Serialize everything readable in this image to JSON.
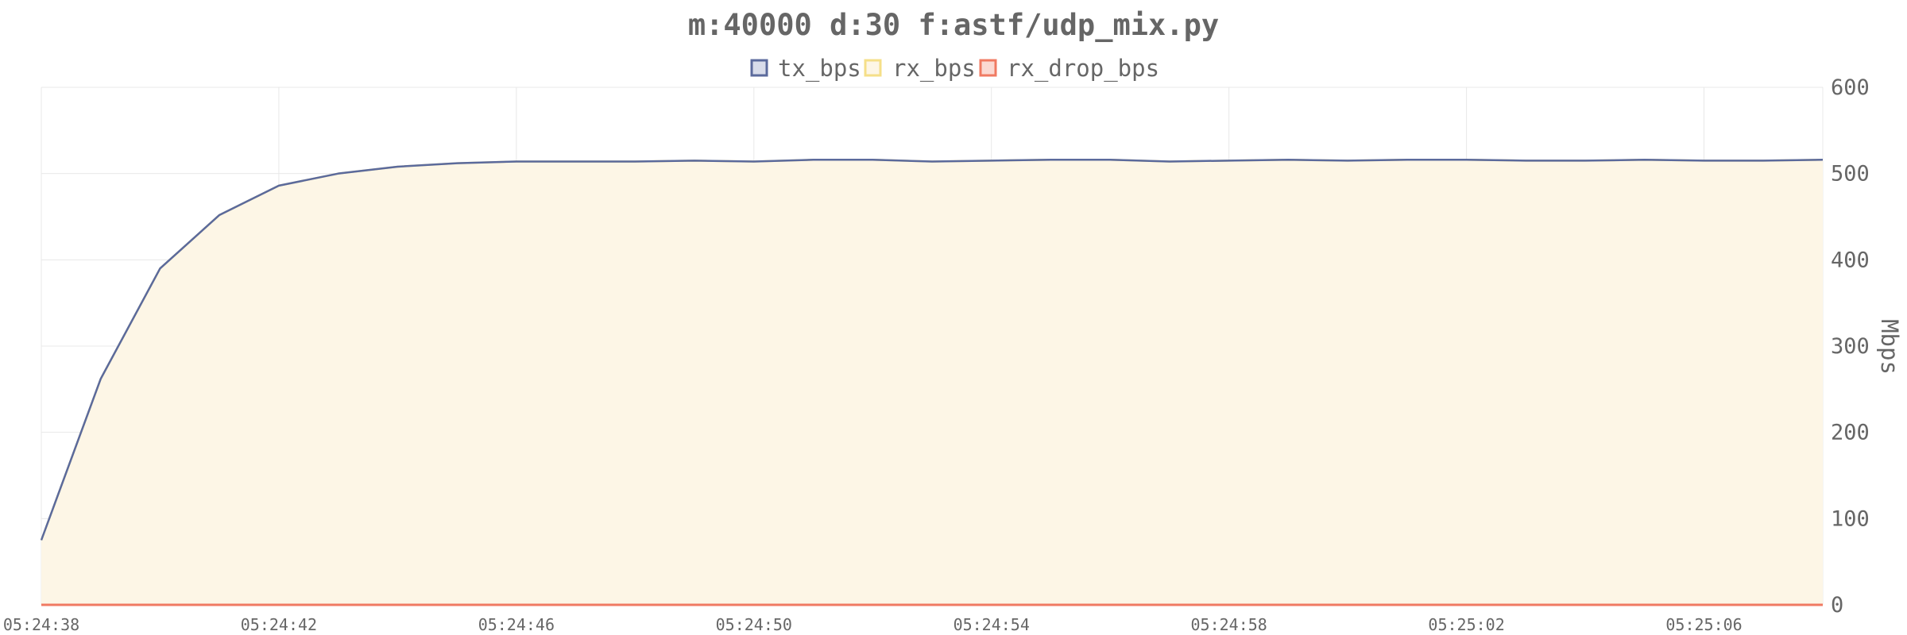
{
  "chart_data": {
    "type": "line",
    "title": "m:40000 d:30 f:astf/udp_mix.py",
    "xlabel": "",
    "ylabel": "Mbps",
    "ylim": [
      0,
      600
    ],
    "yticks": [
      0,
      100,
      200,
      300,
      400,
      500,
      600
    ],
    "y_axis_side": "right",
    "grid": true,
    "legend_position": "top-center",
    "x_start": "05:24:38",
    "x_end": "05:25:08",
    "x_tick_labels": [
      "05:24:38",
      "05:24:42",
      "05:24:46",
      "05:24:50",
      "05:24:54",
      "05:24:58",
      "05:25:02",
      "05:25:06"
    ],
    "x": [
      "05:24:38",
      "05:24:39",
      "05:24:40",
      "05:24:41",
      "05:24:42",
      "05:24:43",
      "05:24:44",
      "05:24:45",
      "05:24:46",
      "05:24:47",
      "05:24:48",
      "05:24:49",
      "05:24:50",
      "05:24:51",
      "05:24:52",
      "05:24:53",
      "05:24:54",
      "05:24:55",
      "05:24:56",
      "05:24:57",
      "05:24:58",
      "05:24:59",
      "05:25:00",
      "05:25:01",
      "05:25:02",
      "05:25:03",
      "05:25:04",
      "05:25:05",
      "05:25:06",
      "05:25:07",
      "05:25:08"
    ],
    "series": [
      {
        "name": "tx_bps",
        "color": "#5b6a9c",
        "fill": "#d8dcea",
        "values": [
          75,
          262,
          390,
          452,
          486,
          500,
          508,
          512,
          514,
          514,
          514,
          515,
          514,
          516,
          516,
          514,
          515,
          516,
          516,
          514,
          515,
          516,
          515,
          516,
          516,
          515,
          515,
          516,
          515,
          515,
          516
        ]
      },
      {
        "name": "rx_bps",
        "color": "#f5df88",
        "fill": "#fdf6e6",
        "values": [
          75,
          262,
          390,
          452,
          486,
          500,
          508,
          512,
          514,
          514,
          514,
          515,
          514,
          516,
          516,
          514,
          515,
          516,
          516,
          514,
          515,
          516,
          515,
          516,
          516,
          515,
          515,
          516,
          515,
          515,
          516
        ]
      },
      {
        "name": "rx_drop_bps",
        "color": "#f07a62",
        "fill": "#fbd9d2",
        "values": [
          0,
          0,
          0,
          0,
          0,
          0,
          0,
          0,
          0,
          0,
          0,
          0,
          0,
          0,
          0,
          0,
          0,
          0,
          0,
          0,
          0,
          0,
          0,
          0,
          0,
          0,
          0,
          0,
          0,
          0,
          0
        ]
      }
    ]
  }
}
